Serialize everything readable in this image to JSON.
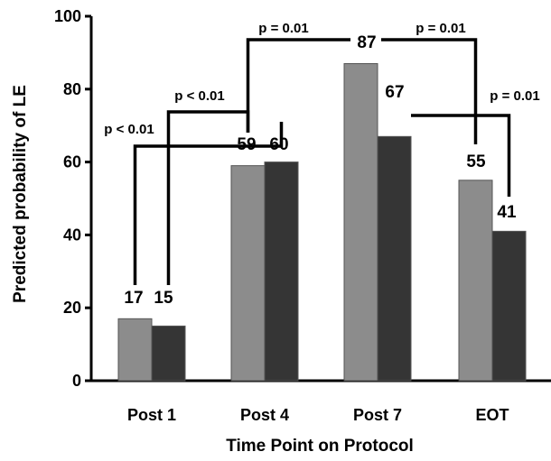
{
  "chart_data": {
    "type": "bar",
    "title": "",
    "xlabel": "Time Point on Protocol",
    "ylabel": "Predicted probability of LE",
    "ylim": [
      0,
      100
    ],
    "yticks": [
      0,
      20,
      40,
      60,
      80,
      100
    ],
    "categories": [
      "Post 1",
      "Post 4",
      "Post 7",
      "EOT"
    ],
    "series": [
      {
        "values": [
          17,
          59,
          87,
          55
        ],
        "color": "#8c8c8c"
      },
      {
        "values": [
          15,
          60,
          67,
          41
        ],
        "color": "#353535"
      }
    ],
    "grid": false,
    "legend": "none",
    "annotations": [
      {
        "text": "p < 0.01",
        "from": {
          "category": "Post 1",
          "series": 0
        },
        "to": {
          "category": "Post 4",
          "series": 1
        }
      },
      {
        "text": "p < 0.01",
        "from": {
          "category": "Post 1",
          "series": 1
        },
        "to": {
          "category": "Post 4",
          "series": 0
        }
      },
      {
        "text": "p = 0.01",
        "from": {
          "category": "Post 4",
          "series": 0
        },
        "to": {
          "category": "Post 7",
          "series": 0
        }
      },
      {
        "text": "p = 0.01",
        "from": {
          "category": "Post 7",
          "series": 0
        },
        "to": {
          "category": "EOT",
          "series": 0
        }
      },
      {
        "text": "p = 0.01",
        "from": {
          "category": "Post 7",
          "series": 1
        },
        "to": {
          "category": "EOT",
          "series": 1
        }
      }
    ]
  }
}
